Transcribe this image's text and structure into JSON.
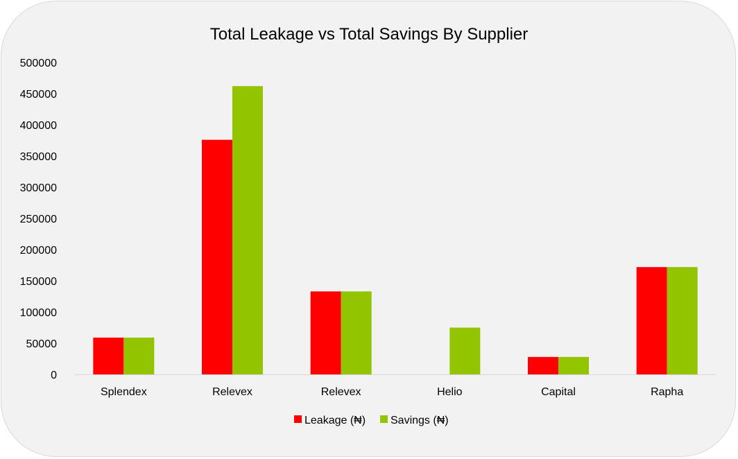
{
  "chart_data": {
    "type": "bar",
    "title": "Total Leakage vs Total Savings By Supplier",
    "xlabel": "",
    "ylabel": "",
    "categories": [
      "Splendex",
      "Relevex",
      "Relevex",
      "Helio",
      "Capital",
      "Rapha"
    ],
    "series": [
      {
        "name": "Leakage (₦)",
        "color": "#ff0000",
        "values": [
          59000,
          376000,
          133000,
          0,
          28000,
          172000
        ]
      },
      {
        "name": "Savings (₦)",
        "color": "#92c400",
        "values": [
          59000,
          462000,
          133000,
          75000,
          28000,
          172000
        ]
      }
    ],
    "ylim": [
      0,
      500000
    ],
    "yticks": [
      "0",
      "50000",
      "100000",
      "150000",
      "200000",
      "250000",
      "300000",
      "350000",
      "400000",
      "450000",
      "500000"
    ],
    "grid": false,
    "legend_position": "bottom"
  }
}
